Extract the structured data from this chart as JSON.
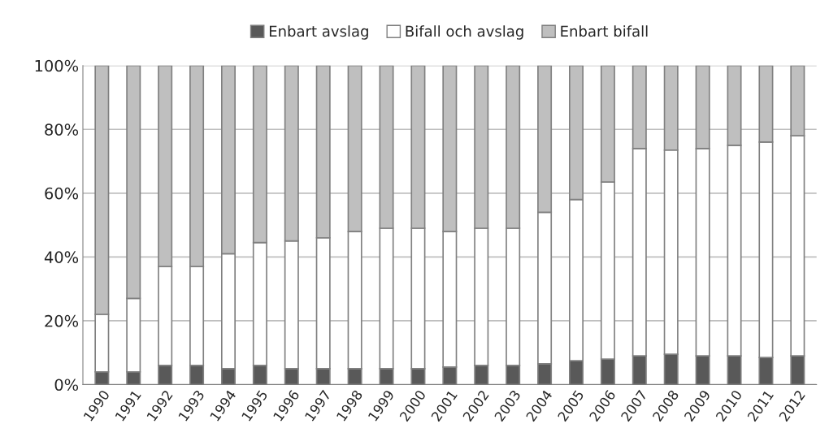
{
  "chart_data": {
    "type": "bar",
    "stacked": true,
    "categories": [
      "1990",
      "1991",
      "1992",
      "1993",
      "1994",
      "1995",
      "1996",
      "1997",
      "1998",
      "1999",
      "2000",
      "2001",
      "2002",
      "2003",
      "2004",
      "2005",
      "2006",
      "2007",
      "2008",
      "2009",
      "2010",
      "2011",
      "2012"
    ],
    "series": [
      {
        "name": "Enbart avslag",
        "color": "#595959",
        "values": [
          4,
          4,
          6,
          6,
          5,
          6,
          5,
          5,
          5,
          5,
          5,
          5.5,
          6,
          6,
          6.5,
          7.5,
          8,
          9,
          9.5,
          9,
          9,
          8.5,
          9
        ]
      },
      {
        "name": "Bifall och avslag",
        "color": "#ffffff",
        "values": [
          18,
          23,
          31,
          31,
          36,
          38.5,
          40,
          41,
          43,
          44,
          44,
          42.5,
          43,
          43,
          47.5,
          50.5,
          55.5,
          65,
          64,
          65,
          66,
          67.5,
          69
        ]
      },
      {
        "name": "Enbart bifall",
        "color": "#bfbfbf",
        "values": [
          78,
          73,
          63,
          63,
          59,
          55.5,
          55,
          54,
          52,
          51,
          51,
          52,
          51,
          51,
          46,
          42,
          36.5,
          26,
          26.5,
          26,
          25,
          24,
          22
        ]
      }
    ],
    "ylim": [
      0,
      100
    ],
    "yticks": [
      {
        "value": 0,
        "label": "0%"
      },
      {
        "value": 20,
        "label": "20%"
      },
      {
        "value": 40,
        "label": "40%"
      },
      {
        "value": 60,
        "label": "60%"
      },
      {
        "value": 80,
        "label": "80%"
      },
      {
        "value": 100,
        "label": "100%"
      }
    ],
    "grid": "y",
    "legend": "top"
  }
}
